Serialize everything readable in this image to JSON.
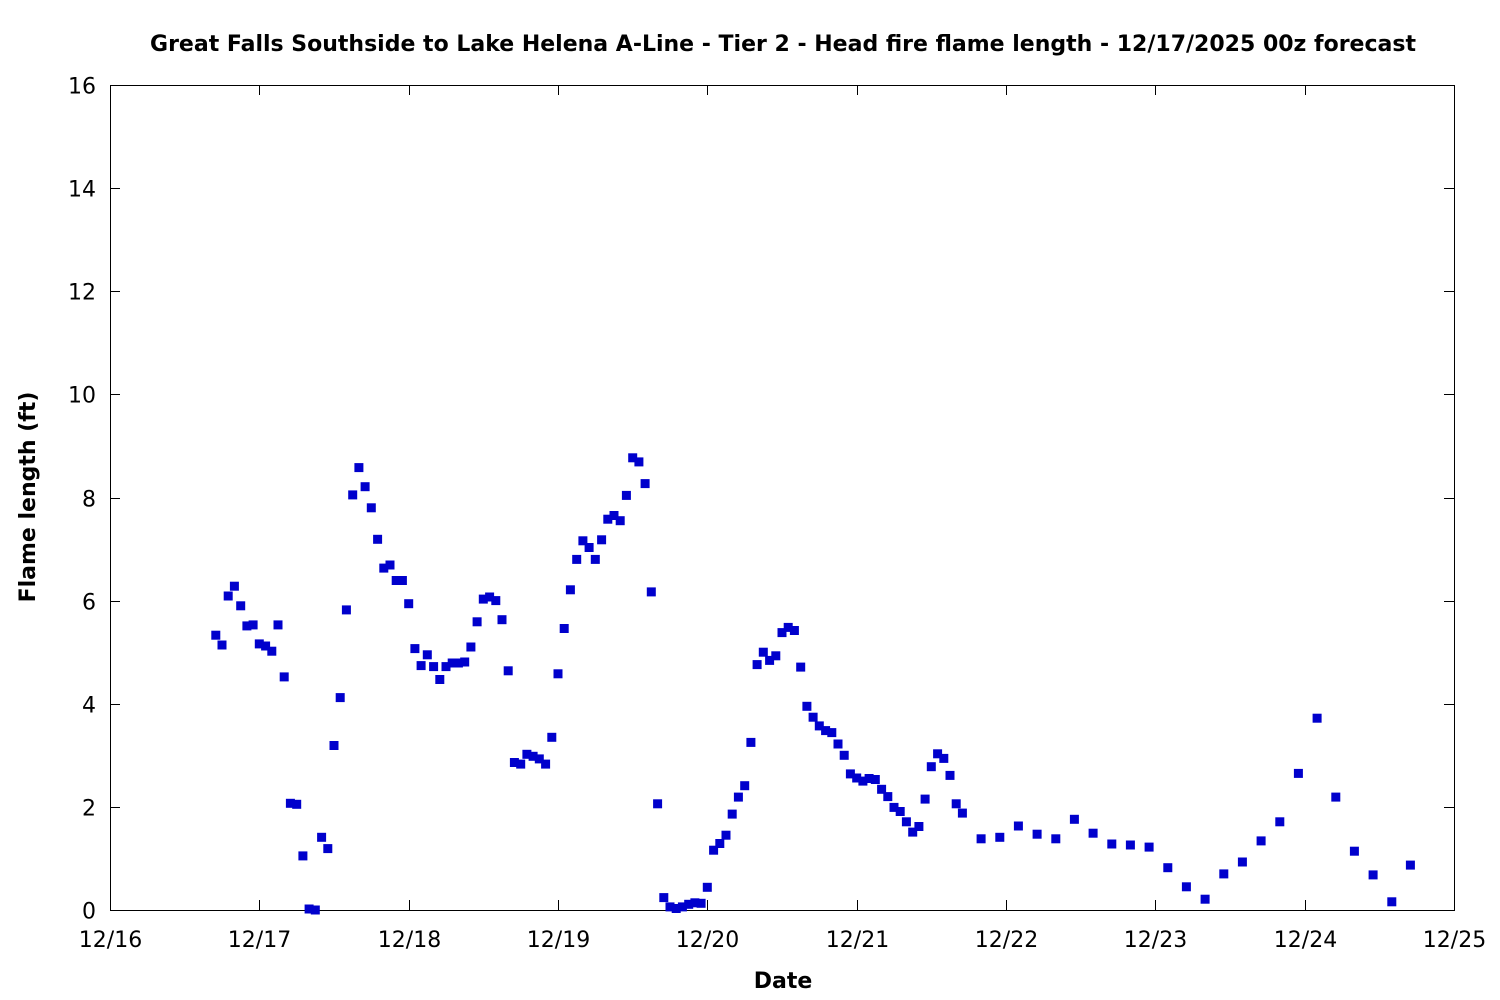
{
  "chart_data": {
    "type": "scatter",
    "title": "Great Falls Southside to Lake Helena A-Line - Tier 2 - Head fire flame length - 12/17/2025 00z forecast",
    "xlabel": "Date",
    "ylabel": "Flame length (ft)",
    "xlim": [
      "2025-12-16T00:00",
      "2025-12-25T00:00"
    ],
    "ylim": [
      0,
      16
    ],
    "x_ticks": [
      "12/16",
      "12/17",
      "12/18",
      "12/19",
      "12/20",
      "12/21",
      "12/22",
      "12/23",
      "12/24",
      "12/25"
    ],
    "y_ticks": [
      "0",
      "2",
      "4",
      "6",
      "8",
      "10",
      "12",
      "14",
      "16"
    ],
    "y_tick_values": [
      0,
      2,
      4,
      6,
      8,
      10,
      12,
      14,
      16
    ],
    "grid": false,
    "legend": "none",
    "marker": "square",
    "color": "#0000cc",
    "series": [
      {
        "x": [
          "2025-12-16T17:00",
          "2025-12-16T18:00",
          "2025-12-16T19:00",
          "2025-12-16T20:00",
          "2025-12-16T21:00",
          "2025-12-16T22:00",
          "2025-12-16T23:00",
          "2025-12-17T00:00",
          "2025-12-17T01:00",
          "2025-12-17T02:00",
          "2025-12-17T03:00",
          "2025-12-17T04:00",
          "2025-12-17T05:00",
          "2025-12-17T06:00",
          "2025-12-17T07:00",
          "2025-12-17T08:00",
          "2025-12-17T09:00",
          "2025-12-17T10:00",
          "2025-12-17T11:00",
          "2025-12-17T12:00",
          "2025-12-17T13:00",
          "2025-12-17T14:00",
          "2025-12-17T15:00",
          "2025-12-17T16:00",
          "2025-12-17T17:00",
          "2025-12-17T18:00",
          "2025-12-17T19:00",
          "2025-12-17T20:00",
          "2025-12-17T21:00",
          "2025-12-17T22:00",
          "2025-12-17T23:00",
          "2025-12-18T00:00",
          "2025-12-18T01:00",
          "2025-12-18T02:00",
          "2025-12-18T03:00",
          "2025-12-18T04:00",
          "2025-12-18T05:00",
          "2025-12-18T06:00",
          "2025-12-18T07:00",
          "2025-12-18T08:00",
          "2025-12-18T09:00",
          "2025-12-18T10:00",
          "2025-12-18T11:00",
          "2025-12-18T12:00",
          "2025-12-18T13:00",
          "2025-12-18T14:00",
          "2025-12-18T15:00",
          "2025-12-18T16:00",
          "2025-12-18T17:00",
          "2025-12-18T18:00",
          "2025-12-18T19:00",
          "2025-12-18T20:00",
          "2025-12-18T21:00",
          "2025-12-18T22:00",
          "2025-12-18T23:00",
          "2025-12-19T00:00",
          "2025-12-19T01:00",
          "2025-12-19T02:00",
          "2025-12-19T03:00",
          "2025-12-19T04:00",
          "2025-12-19T05:00",
          "2025-12-19T06:00",
          "2025-12-19T07:00",
          "2025-12-19T08:00",
          "2025-12-19T09:00",
          "2025-12-19T10:00",
          "2025-12-19T11:00",
          "2025-12-19T12:00",
          "2025-12-19T13:00",
          "2025-12-19T14:00",
          "2025-12-19T15:00",
          "2025-12-19T16:00",
          "2025-12-19T17:00",
          "2025-12-19T18:00",
          "2025-12-19T19:00",
          "2025-12-19T20:00",
          "2025-12-19T21:00",
          "2025-12-19T22:00",
          "2025-12-19T23:00",
          "2025-12-20T00:00",
          "2025-12-20T01:00",
          "2025-12-20T02:00",
          "2025-12-20T03:00",
          "2025-12-20T04:00",
          "2025-12-20T05:00",
          "2025-12-20T06:00",
          "2025-12-20T07:00",
          "2025-12-20T08:00",
          "2025-12-20T09:00",
          "2025-12-20T10:00",
          "2025-12-20T11:00",
          "2025-12-20T12:00",
          "2025-12-20T13:00",
          "2025-12-20T14:00",
          "2025-12-20T15:00",
          "2025-12-20T16:00",
          "2025-12-20T17:00",
          "2025-12-20T18:00",
          "2025-12-20T19:00",
          "2025-12-20T20:00",
          "2025-12-20T21:00",
          "2025-12-20T22:00",
          "2025-12-20T23:00",
          "2025-12-21T00:00",
          "2025-12-21T01:00",
          "2025-12-21T02:00",
          "2025-12-21T03:00",
          "2025-12-21T04:00",
          "2025-12-21T05:00",
          "2025-12-21T06:00",
          "2025-12-21T07:00",
          "2025-12-21T08:00",
          "2025-12-21T09:00",
          "2025-12-21T10:00",
          "2025-12-21T11:00",
          "2025-12-21T12:00",
          "2025-12-21T13:00",
          "2025-12-21T14:00",
          "2025-12-21T15:00",
          "2025-12-21T16:00",
          "2025-12-21T17:00",
          "2025-12-21T20:00",
          "2025-12-21T23:00",
          "2025-12-22T02:00",
          "2025-12-22T05:00",
          "2025-12-22T08:00",
          "2025-12-22T11:00",
          "2025-12-22T14:00",
          "2025-12-22T17:00",
          "2025-12-22T20:00",
          "2025-12-22T23:00",
          "2025-12-23T02:00",
          "2025-12-23T05:00",
          "2025-12-23T08:00",
          "2025-12-23T11:00",
          "2025-12-23T14:00",
          "2025-12-23T17:00",
          "2025-12-23T20:00",
          "2025-12-23T23:00",
          "2025-12-24T02:00",
          "2025-12-24T05:00",
          "2025-12-24T08:00",
          "2025-12-24T11:00",
          "2025-12-24T14:00",
          "2025-12-24T17:00"
        ],
        "y": [
          5.33,
          5.14,
          6.09,
          6.28,
          5.9,
          5.51,
          5.53,
          5.16,
          5.12,
          5.02,
          5.53,
          4.52,
          2.07,
          2.05,
          1.05,
          0.02,
          0.0,
          1.41,
          1.19,
          3.19,
          4.12,
          5.82,
          8.05,
          8.58,
          8.21,
          7.8,
          7.19,
          6.63,
          6.69,
          6.39,
          6.39,
          5.94,
          5.07,
          4.74,
          4.95,
          4.72,
          4.47,
          4.72,
          4.79,
          4.79,
          4.81,
          5.1,
          5.59,
          6.03,
          6.07,
          6.0,
          5.63,
          4.64,
          2.86,
          2.83,
          3.02,
          2.98,
          2.93,
          2.83,
          3.35,
          4.58,
          5.46,
          6.21,
          6.8,
          7.16,
          7.03,
          6.8,
          7.18,
          7.58,
          7.65,
          7.55,
          8.04,
          8.77,
          8.69,
          8.27,
          6.17,
          2.06,
          0.24,
          0.06,
          0.03,
          0.06,
          0.11,
          0.14,
          0.13,
          0.44,
          1.16,
          1.29,
          1.45,
          1.86,
          2.19,
          2.41,
          3.25,
          4.76,
          5.0,
          4.84,
          4.93,
          5.38,
          5.48,
          5.42,
          4.71,
          3.95,
          3.74,
          3.57,
          3.48,
          3.44,
          3.22,
          3.0,
          2.64,
          2.56,
          2.5,
          2.55,
          2.53,
          2.34,
          2.2,
          1.99,
          1.91,
          1.71,
          1.51,
          1.62,
          2.15,
          2.78,
          3.03,
          2.94,
          2.61,
          2.06,
          1.88,
          1.38,
          1.41,
          1.63,
          1.47,
          1.38,
          1.76,
          1.49,
          1.28,
          1.26,
          1.22,
          0.82,
          0.45,
          0.21,
          0.7,
          0.93,
          1.34,
          1.71,
          2.65,
          3.72,
          2.19,
          1.14,
          0.68,
          0.16,
          0.87
        ]
      }
    ]
  }
}
